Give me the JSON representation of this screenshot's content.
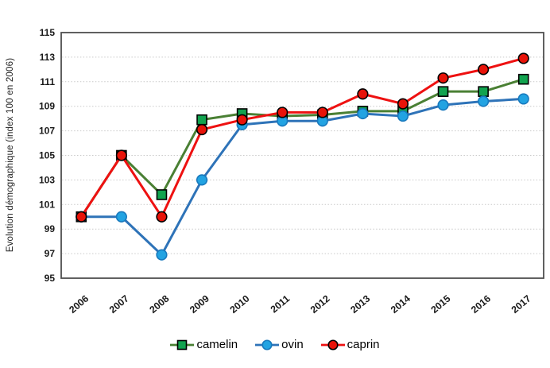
{
  "chart_data": {
    "type": "line",
    "title": "",
    "xlabel": "",
    "ylabel": "Evolution démographique (index 100 en 2006)",
    "ylim": [
      95,
      115
    ],
    "ytick_step": 2,
    "grid": "horizontal-dotted",
    "legend_position": "bottom-center",
    "categories": [
      "2006",
      "2007",
      "2008",
      "2009",
      "2010",
      "2011",
      "2012",
      "2013",
      "2014",
      "2015",
      "2016",
      "2017"
    ],
    "series": [
      {
        "name": "camelin",
        "marker": "square",
        "line_color": "#4a8034",
        "marker_fill": "#12a34f",
        "marker_stroke": "#000000",
        "values": [
          100,
          105,
          101.8,
          107.9,
          108.4,
          108.2,
          108.3,
          108.6,
          108.6,
          110.2,
          110.2,
          111.2
        ]
      },
      {
        "name": "ovin",
        "marker": "circle",
        "line_color": "#2e73b8",
        "marker_fill": "#22a3e2",
        "marker_stroke": "#1879bd",
        "values": [
          100,
          100,
          96.9,
          103,
          107.5,
          107.8,
          107.8,
          108.4,
          108.2,
          109.1,
          109.4,
          109.6
        ]
      },
      {
        "name": "caprin",
        "marker": "circle",
        "line_color": "#ee1111",
        "marker_fill": "#e81309",
        "marker_stroke": "#000000",
        "values": [
          100,
          105,
          100,
          107.1,
          107.9,
          108.5,
          108.5,
          110,
          109.2,
          111.3,
          112,
          112.9
        ]
      }
    ]
  },
  "style": {
    "plot_border_color": "#4f4f4f",
    "gridline_color": "#c9c9c9",
    "axis_text_color": "#1a1a1a",
    "background_color": "#ffffff"
  }
}
